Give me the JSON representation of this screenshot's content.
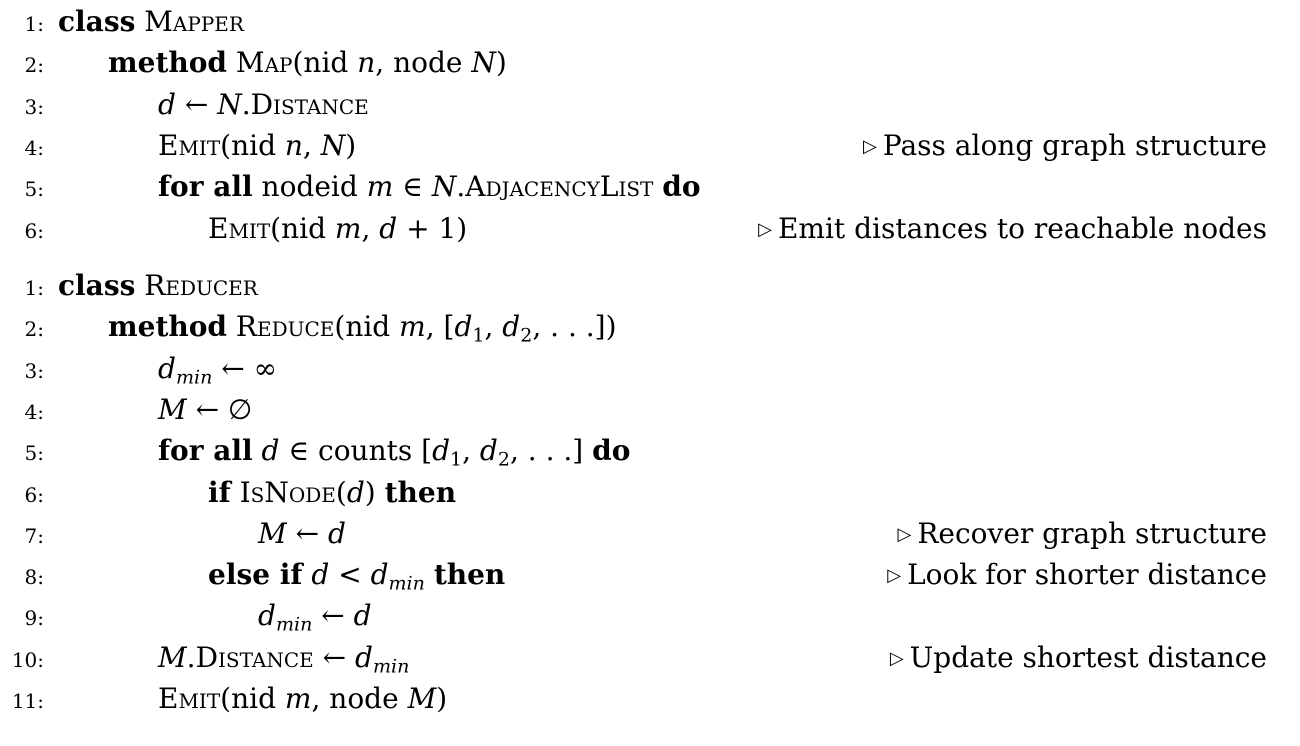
{
  "mapper": {
    "lines": [
      {
        "num": "1:",
        "indent": 0,
        "comment": "",
        "parts": [
          {
            "t": "class",
            "s": "kw"
          },
          {
            "t": " "
          },
          {
            "t": "Mapper",
            "s": "sc"
          }
        ]
      },
      {
        "num": "2:",
        "indent": 1,
        "comment": "",
        "parts": [
          {
            "t": "method",
            "s": "kw"
          },
          {
            "t": " "
          },
          {
            "t": "Map",
            "s": "sc"
          },
          {
            "t": "(nid "
          },
          {
            "t": "n",
            "s": "m"
          },
          {
            "t": ", node "
          },
          {
            "t": "N",
            "s": "m"
          },
          {
            "t": ")"
          }
        ]
      },
      {
        "num": "3:",
        "indent": 2,
        "comment": "",
        "parts": [
          {
            "t": "d",
            "s": "m"
          },
          {
            "t": " ← "
          },
          {
            "t": "N",
            "s": "m"
          },
          {
            "t": "."
          },
          {
            "t": "Distance",
            "s": "sc"
          }
        ]
      },
      {
        "num": "4:",
        "indent": 2,
        "comment": "Pass along graph structure",
        "parts": [
          {
            "t": "Emit",
            "s": "sc"
          },
          {
            "t": "(nid "
          },
          {
            "t": "n",
            "s": "m"
          },
          {
            "t": ", "
          },
          {
            "t": "N",
            "s": "m"
          },
          {
            "t": ")"
          }
        ]
      },
      {
        "num": "5:",
        "indent": 2,
        "comment": "",
        "parts": [
          {
            "t": "for all",
            "s": "kw"
          },
          {
            "t": " nodeid "
          },
          {
            "t": "m",
            "s": "m"
          },
          {
            "t": " ∈ "
          },
          {
            "t": "N",
            "s": "m"
          },
          {
            "t": "."
          },
          {
            "t": "AdjacencyList",
            "s": "sc"
          },
          {
            "t": " "
          },
          {
            "t": "do",
            "s": "kw"
          }
        ]
      },
      {
        "num": "6:",
        "indent": 3,
        "comment": "Emit distances to reachable nodes",
        "parts": [
          {
            "t": "Emit",
            "s": "sc"
          },
          {
            "t": "(nid "
          },
          {
            "t": "m",
            "s": "m"
          },
          {
            "t": ", "
          },
          {
            "t": "d",
            "s": "m"
          },
          {
            "t": " + 1)"
          }
        ]
      }
    ]
  },
  "reducer": {
    "lines": [
      {
        "num": "1:",
        "indent": 0,
        "comment": "",
        "parts": [
          {
            "t": "class",
            "s": "kw"
          },
          {
            "t": " "
          },
          {
            "t": "Reducer",
            "s": "sc"
          }
        ]
      },
      {
        "num": "2:",
        "indent": 1,
        "comment": "",
        "parts": [
          {
            "t": "method",
            "s": "kw"
          },
          {
            "t": " "
          },
          {
            "t": "Reduce",
            "s": "sc"
          },
          {
            "t": "(nid "
          },
          {
            "t": "m",
            "s": "m"
          },
          {
            "t": ", ["
          },
          {
            "t": "d",
            "s": "m"
          },
          {
            "t": "1",
            "s": "sub"
          },
          {
            "t": ", "
          },
          {
            "t": "d",
            "s": "m"
          },
          {
            "t": "2",
            "s": "sub"
          },
          {
            "t": ", . . .])"
          }
        ]
      },
      {
        "num": "3:",
        "indent": 2,
        "comment": "",
        "parts": [
          {
            "t": "d",
            "s": "m"
          },
          {
            "t": "min",
            "s": "msub"
          },
          {
            "t": " ← ∞"
          }
        ]
      },
      {
        "num": "4:",
        "indent": 2,
        "comment": "",
        "parts": [
          {
            "t": "M",
            "s": "m"
          },
          {
            "t": " ← ∅"
          }
        ]
      },
      {
        "num": "5:",
        "indent": 2,
        "comment": "",
        "parts": [
          {
            "t": "for all",
            "s": "kw"
          },
          {
            "t": " "
          },
          {
            "t": "d",
            "s": "m"
          },
          {
            "t": " ∈ counts ["
          },
          {
            "t": "d",
            "s": "m"
          },
          {
            "t": "1",
            "s": "sub"
          },
          {
            "t": ", "
          },
          {
            "t": "d",
            "s": "m"
          },
          {
            "t": "2",
            "s": "sub"
          },
          {
            "t": ", . . .] "
          },
          {
            "t": "do",
            "s": "kw"
          }
        ]
      },
      {
        "num": "6:",
        "indent": 3,
        "comment": "",
        "parts": [
          {
            "t": "if",
            "s": "kw"
          },
          {
            "t": " "
          },
          {
            "t": "IsNode",
            "s": "sc"
          },
          {
            "t": "("
          },
          {
            "t": "d",
            "s": "m"
          },
          {
            "t": ") "
          },
          {
            "t": "then",
            "s": "kw"
          }
        ]
      },
      {
        "num": "7:",
        "indent": 4,
        "comment": "Recover graph structure",
        "parts": [
          {
            "t": "M",
            "s": "m"
          },
          {
            "t": " ← "
          },
          {
            "t": "d",
            "s": "m"
          }
        ]
      },
      {
        "num": "8:",
        "indent": 3,
        "comment": "Look for shorter distance",
        "parts": [
          {
            "t": "else if",
            "s": "kw"
          },
          {
            "t": " "
          },
          {
            "t": "d",
            "s": "m"
          },
          {
            "t": " < "
          },
          {
            "t": "d",
            "s": "m"
          },
          {
            "t": "min",
            "s": "msub"
          },
          {
            "t": " "
          },
          {
            "t": "then",
            "s": "kw"
          }
        ]
      },
      {
        "num": "9:",
        "indent": 4,
        "comment": "",
        "parts": [
          {
            "t": "d",
            "s": "m"
          },
          {
            "t": "min",
            "s": "msub"
          },
          {
            "t": " ← "
          },
          {
            "t": "d",
            "s": "m"
          }
        ]
      },
      {
        "num": "10:",
        "indent": 2,
        "comment": "Update shortest distance",
        "parts": [
          {
            "t": "M",
            "s": "m"
          },
          {
            "t": "."
          },
          {
            "t": "Distance",
            "s": "sc"
          },
          {
            "t": " ← "
          },
          {
            "t": "d",
            "s": "m"
          },
          {
            "t": "min",
            "s": "msub"
          }
        ]
      },
      {
        "num": "11:",
        "indent": 2,
        "comment": "",
        "parts": [
          {
            "t": "Emit",
            "s": "sc"
          },
          {
            "t": "(nid "
          },
          {
            "t": "m",
            "s": "m"
          },
          {
            "t": ", node "
          },
          {
            "t": "M",
            "s": "m"
          },
          {
            "t": ")"
          }
        ]
      }
    ]
  },
  "comment_symbol": "▷"
}
